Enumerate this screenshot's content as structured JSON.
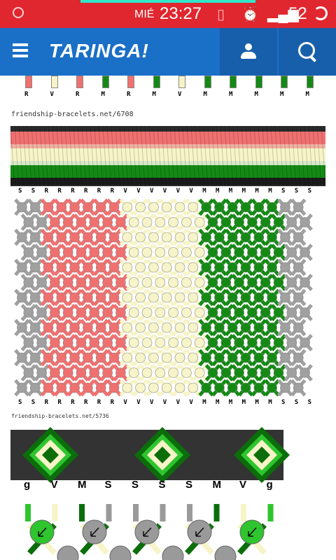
{
  "status_bar": {
    "day": "MIÉ",
    "time": "23:27",
    "battery": "52",
    "icons": [
      "camera-icon",
      "vibrate-icon",
      "alarm-icon",
      "signal-icon",
      "battery-ring-icon"
    ]
  },
  "app_bar": {
    "logo": "TARINGA!",
    "icons": [
      "menu-icon",
      "user-icon",
      "search-icon"
    ]
  },
  "pattern1": {
    "top_strands": [
      "R",
      "V",
      "R",
      "M",
      "R",
      "M",
      "V",
      "M",
      "M",
      "M",
      "M",
      "M"
    ],
    "source": "friendship-bracelets.net/6708",
    "strands_top": [
      "S",
      "S",
      "R",
      "R",
      "R",
      "R",
      "R",
      "R",
      "V",
      "V",
      "V",
      "V",
      "V",
      "V",
      "M",
      "M",
      "M",
      "M",
      "M",
      "M",
      "S",
      "S",
      "S"
    ],
    "strands_bottom": [
      "S",
      "S",
      "R",
      "R",
      "R",
      "R",
      "R",
      "R",
      "V",
      "V",
      "V",
      "V",
      "V",
      "V",
      "M",
      "M",
      "M",
      "M",
      "M",
      "M",
      "S",
      "S",
      "S"
    ],
    "colors": {
      "S": "#a0a0a0",
      "R": "#f07070",
      "V": "#f6f4c8",
      "M": "#148a14"
    }
  },
  "pattern2": {
    "source": "friendship-bracelets.net/5736",
    "strands": [
      "g",
      "V",
      "M",
      "S",
      "S",
      "S",
      "S",
      "M",
      "V",
      "g"
    ],
    "colors": {
      "g": "#2ec52e",
      "V": "#f6f4c8",
      "M": "#0b6e0b",
      "S": "#9a9a9a",
      "dark": "#333333"
    }
  }
}
